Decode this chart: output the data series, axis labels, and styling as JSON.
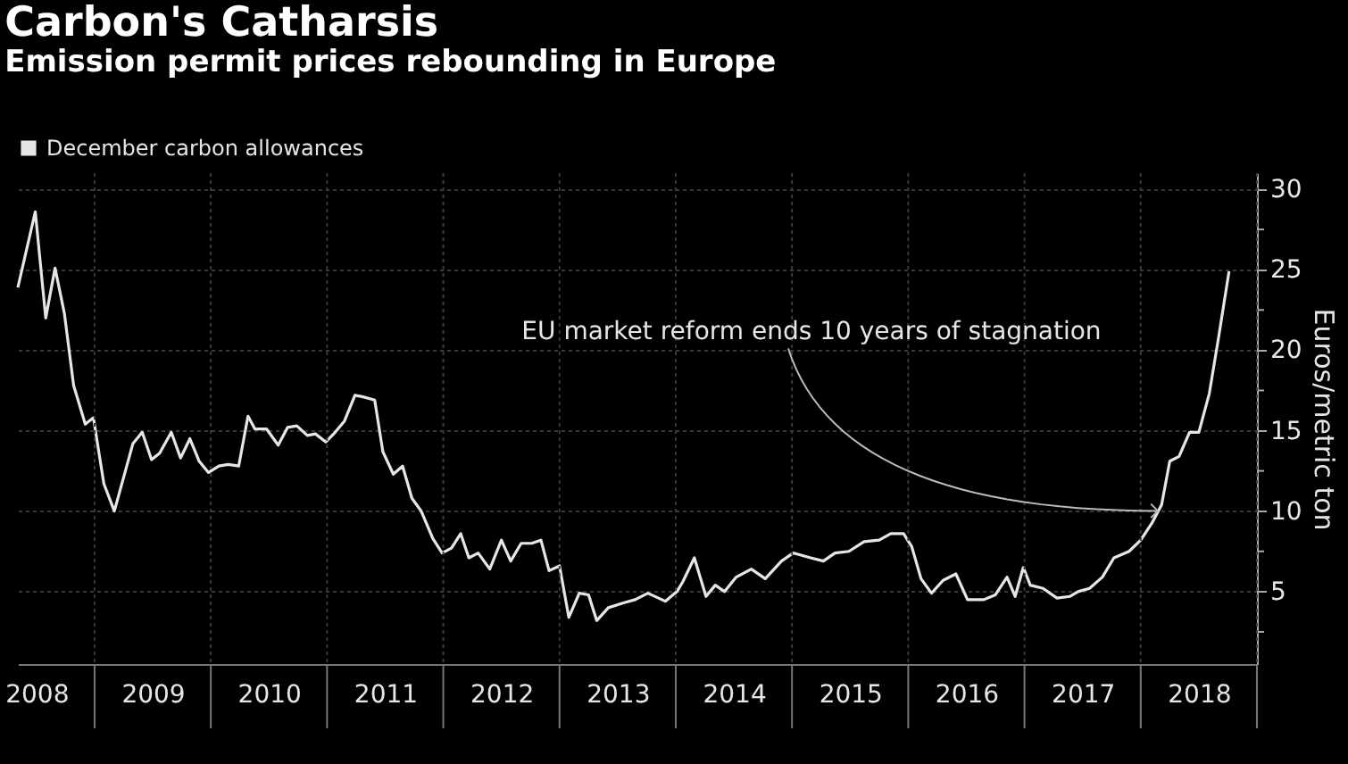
{
  "chart_data": {
    "type": "line",
    "title": "Carbon's Catharsis",
    "subtitle": "Emission permit prices rebounding in Europe",
    "ylabel": "Euros/metric ton",
    "x": [
      2008.34,
      2008.49,
      2008.58,
      2008.66,
      2008.74,
      2008.82,
      2008.92,
      2008.99,
      2009.08,
      2009.17,
      2009.25,
      2009.33,
      2009.41,
      2009.49,
      2009.56,
      2009.66,
      2009.74,
      2009.82,
      2009.9,
      2009.98,
      2010.07,
      2010.15,
      2010.24,
      2010.32,
      2010.38,
      2010.48,
      2010.58,
      2010.66,
      2010.74,
      2010.83,
      2010.9,
      2010.99,
      2011.07,
      2011.15,
      2011.24,
      2011.31,
      2011.41,
      2011.48,
      2011.57,
      2011.65,
      2011.73,
      2011.81,
      2011.91,
      2011.99,
      2012.07,
      2012.15,
      2012.22,
      2012.3,
      2012.4,
      2012.5,
      2012.58,
      2012.67,
      2012.76,
      2012.84,
      2012.91,
      2013.0,
      2013.08,
      2013.17,
      2013.25,
      2013.32,
      2013.42,
      2013.55,
      2013.65,
      2013.76,
      2013.91,
      2014.01,
      2014.06,
      2014.16,
      2014.26,
      2014.34,
      2014.42,
      2014.52,
      2014.65,
      2014.77,
      2014.91,
      2015.01,
      2015.16,
      2015.27,
      2015.37,
      2015.49,
      2015.62,
      2015.75,
      2015.85,
      2015.96,
      2016.03,
      2016.11,
      2016.2,
      2016.3,
      2016.41,
      2016.51,
      2016.65,
      2016.75,
      2016.85,
      2016.92,
      2016.99,
      2017.05,
      2017.16,
      2017.28,
      2017.39,
      2017.46,
      2017.56,
      2017.67,
      2017.77,
      2017.9,
      2018.0,
      2018.1,
      2018.18,
      2018.25,
      2018.33,
      2018.42,
      2018.5,
      2018.59,
      2018.67,
      2018.76
    ],
    "series": [
      {
        "name": "December carbon allowances",
        "color": "#e6e6e6",
        "values": [
          23.9,
          28.6,
          22.0,
          25.1,
          22.3,
          17.8,
          15.4,
          15.8,
          11.7,
          10.0,
          12.1,
          14.2,
          14.9,
          13.2,
          13.6,
          14.9,
          13.3,
          14.5,
          13.1,
          12.4,
          12.8,
          12.9,
          12.8,
          15.9,
          15.1,
          15.1,
          14.1,
          15.2,
          15.3,
          14.7,
          14.8,
          14.3,
          14.9,
          15.6,
          17.2,
          17.1,
          16.9,
          13.7,
          12.3,
          12.8,
          10.8,
          10.0,
          8.3,
          7.4,
          7.7,
          8.6,
          7.1,
          7.4,
          6.4,
          8.2,
          6.9,
          8.0,
          8.0,
          8.2,
          6.3,
          6.6,
          3.4,
          4.9,
          4.8,
          3.2,
          4.0,
          4.3,
          4.5,
          4.9,
          4.4,
          5.0,
          5.6,
          7.1,
          4.7,
          5.4,
          5.0,
          5.9,
          6.4,
          5.8,
          6.9,
          7.4,
          7.1,
          6.9,
          7.4,
          7.5,
          8.1,
          8.2,
          8.6,
          8.6,
          7.8,
          5.8,
          4.9,
          5.7,
          6.1,
          4.5,
          4.5,
          4.8,
          5.9,
          4.7,
          6.5,
          5.4,
          5.2,
          4.6,
          4.7,
          5.0,
          5.2,
          5.9,
          7.1,
          7.5,
          8.2,
          9.3,
          10.4,
          13.1,
          13.4,
          14.9,
          14.9,
          17.3,
          20.8,
          24.9
        ]
      }
    ],
    "xlim": [
      2008.34,
      2019.0
    ],
    "xticks": [
      {
        "value": 2008.5,
        "label": "2008"
      },
      {
        "value": 2009,
        "label": null
      },
      {
        "value": 2009.5,
        "label": "2009"
      },
      {
        "value": 2010,
        "label": null
      },
      {
        "value": 2010.5,
        "label": "2010"
      },
      {
        "value": 2011,
        "label": null
      },
      {
        "value": 2011.5,
        "label": "2011"
      },
      {
        "value": 2012,
        "label": null
      },
      {
        "value": 2012.5,
        "label": "2012"
      },
      {
        "value": 2013,
        "label": null
      },
      {
        "value": 2013.5,
        "label": "2013"
      },
      {
        "value": 2014,
        "label": null
      },
      {
        "value": 2014.5,
        "label": "2014"
      },
      {
        "value": 2015,
        "label": null
      },
      {
        "value": 2015.5,
        "label": "2015"
      },
      {
        "value": 2016,
        "label": null
      },
      {
        "value": 2016.5,
        "label": "2016"
      },
      {
        "value": 2017,
        "label": null
      },
      {
        "value": 2017.5,
        "label": "2017"
      },
      {
        "value": 2018,
        "label": null
      },
      {
        "value": 2018.5,
        "label": "2018"
      },
      {
        "value": 2019,
        "label": null
      }
    ],
    "ylim": [
      0.5,
      31
    ],
    "yticks": [
      {
        "value": 2.5,
        "label": null
      },
      5,
      {
        "value": 7.5,
        "label": null
      },
      10,
      {
        "value": 12.5,
        "label": null
      },
      15,
      {
        "value": 17.5,
        "label": null
      },
      20,
      {
        "value": 22.5,
        "label": null
      },
      25,
      {
        "value": 27.5,
        "label": null
      },
      30
    ],
    "annotations": [
      "EU market reform ends 10 years of stagnation"
    ],
    "grid": true,
    "legend": "top left",
    "marker": "none",
    "line_style": "solid"
  }
}
